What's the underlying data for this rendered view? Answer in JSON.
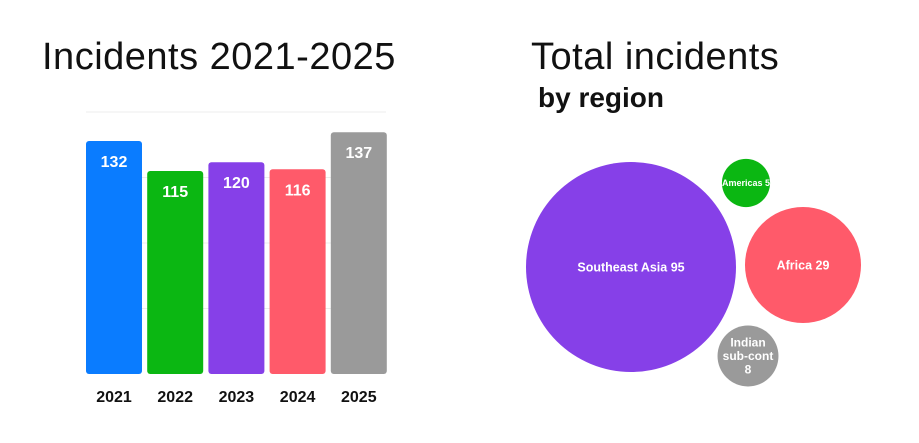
{
  "chart_data": [
    {
      "type": "bar",
      "title": "Incidents 2021-2025",
      "categories": [
        "2021",
        "2022",
        "2023",
        "2024",
        "2025"
      ],
      "values": [
        132,
        115,
        120,
        116,
        137
      ],
      "colors": [
        "#0a7cff",
        "#0bb712",
        "#8640e8",
        "#ff5a6a",
        "#9a9a9a"
      ],
      "ylim": [
        0,
        140
      ],
      "grid": true
    },
    {
      "type": "bubble",
      "title": "Total incidents",
      "subtitle": "by region",
      "items": [
        {
          "label": "Southeast Asia 95",
          "lines": [
            "Southeast Asia 95"
          ],
          "name": "Southeast Asia",
          "value": 95,
          "color": "#8640e8"
        },
        {
          "label": "Americas 5",
          "lines": [
            "Americas 5"
          ],
          "name": "Americas",
          "value": 5,
          "color": "#0bb712"
        },
        {
          "label": "Africa 29",
          "lines": [
            "Africa 29"
          ],
          "name": "Africa",
          "value": 29,
          "color": "#ff5a6a"
        },
        {
          "label": "Indian sub-cont 8",
          "lines": [
            "Indian",
            "sub-cont",
            "8"
          ],
          "name": "Indian sub-cont",
          "value": 8,
          "color": "#9a9a9a"
        }
      ]
    }
  ]
}
